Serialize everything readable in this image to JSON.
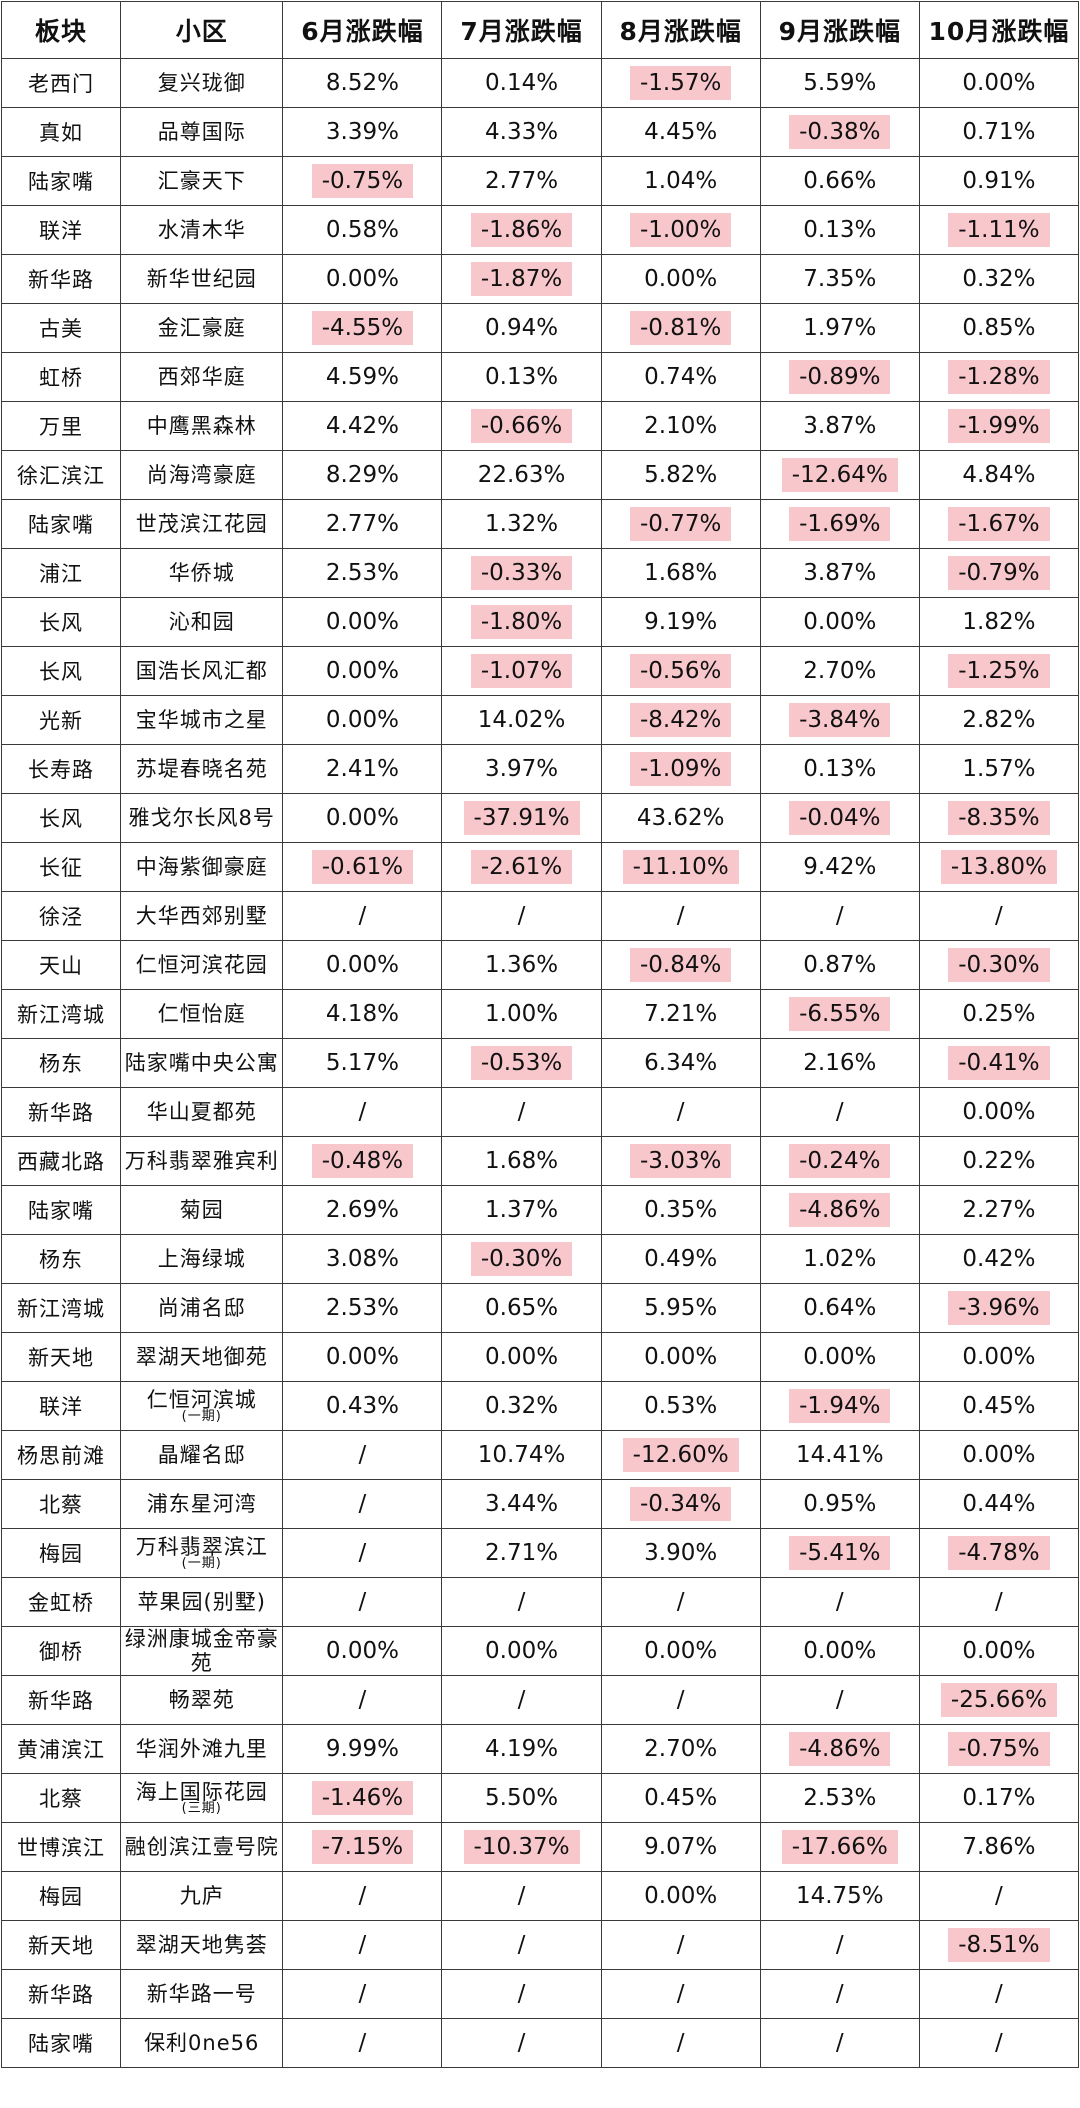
{
  "headers": [
    "板块",
    "小区",
    "6月涨跌幅",
    "7月涨跌幅",
    "8月涨跌幅",
    "9月涨跌幅",
    "10月涨跌幅"
  ],
  "highlight_color": "#f8c7cb",
  "rows": [
    {
      "board": "老西门",
      "community": "复兴珑御",
      "sub": "",
      "values": [
        "8.52%",
        "0.14%",
        "-1.57%",
        "5.59%",
        "0.00%"
      ]
    },
    {
      "board": "真如",
      "community": "品尊国际",
      "sub": "",
      "values": [
        "3.39%",
        "4.33%",
        "4.45%",
        "-0.38%",
        "0.71%"
      ]
    },
    {
      "board": "陆家嘴",
      "community": "汇豪天下",
      "sub": "",
      "values": [
        "-0.75%",
        "2.77%",
        "1.04%",
        "0.66%",
        "0.91%"
      ]
    },
    {
      "board": "联洋",
      "community": "水清木华",
      "sub": "",
      "values": [
        "0.58%",
        "-1.86%",
        "-1.00%",
        "0.13%",
        "-1.11%"
      ]
    },
    {
      "board": "新华路",
      "community": "新华世纪园",
      "sub": "",
      "values": [
        "0.00%",
        "-1.87%",
        "0.00%",
        "7.35%",
        "0.32%"
      ]
    },
    {
      "board": "古美",
      "community": "金汇豪庭",
      "sub": "",
      "values": [
        "-4.55%",
        "0.94%",
        "-0.81%",
        "1.97%",
        "0.85%"
      ]
    },
    {
      "board": "虹桥",
      "community": "西郊华庭",
      "sub": "",
      "values": [
        "4.59%",
        "0.13%",
        "0.74%",
        "-0.89%",
        "-1.28%"
      ]
    },
    {
      "board": "万里",
      "community": "中鹰黑森林",
      "sub": "",
      "values": [
        "4.42%",
        "-0.66%",
        "2.10%",
        "3.87%",
        "-1.99%"
      ]
    },
    {
      "board": "徐汇滨江",
      "community": "尚海湾豪庭",
      "sub": "",
      "values": [
        "8.29%",
        "22.63%",
        "5.82%",
        "-12.64%",
        "4.84%"
      ]
    },
    {
      "board": "陆家嘴",
      "community": "世茂滨江花园",
      "sub": "",
      "values": [
        "2.77%",
        "1.32%",
        "-0.77%",
        "-1.69%",
        "-1.67%"
      ]
    },
    {
      "board": "浦江",
      "community": "华侨城",
      "sub": "",
      "values": [
        "2.53%",
        "-0.33%",
        "1.68%",
        "3.87%",
        "-0.79%"
      ]
    },
    {
      "board": "长风",
      "community": "沁和园",
      "sub": "",
      "values": [
        "0.00%",
        "-1.80%",
        "9.19%",
        "0.00%",
        "1.82%"
      ]
    },
    {
      "board": "长风",
      "community": "国浩长风汇都",
      "sub": "",
      "values": [
        "0.00%",
        "-1.07%",
        "-0.56%",
        "2.70%",
        "-1.25%"
      ]
    },
    {
      "board": "光新",
      "community": "宝华城市之星",
      "sub": "",
      "values": [
        "0.00%",
        "14.02%",
        "-8.42%",
        "-3.84%",
        "2.82%"
      ]
    },
    {
      "board": "长寿路",
      "community": "苏堤春晓名苑",
      "sub": "",
      "values": [
        "2.41%",
        "3.97%",
        "-1.09%",
        "0.13%",
        "1.57%"
      ]
    },
    {
      "board": "长风",
      "community": "雅戈尔长风8号",
      "sub": "",
      "values": [
        "0.00%",
        "-37.91%",
        "43.62%",
        "-0.04%",
        "-8.35%"
      ]
    },
    {
      "board": "长征",
      "community": "中海紫御豪庭",
      "sub": "",
      "values": [
        "-0.61%",
        "-2.61%",
        "-11.10%",
        "9.42%",
        "-13.80%"
      ]
    },
    {
      "board": "徐泾",
      "community": "大华西郊别墅",
      "sub": "",
      "values": [
        "/",
        "/",
        "/",
        "/",
        "/"
      ]
    },
    {
      "board": "天山",
      "community": "仁恒河滨花园",
      "sub": "",
      "values": [
        "0.00%",
        "1.36%",
        "-0.84%",
        "0.87%",
        "-0.30%"
      ]
    },
    {
      "board": "新江湾城",
      "community": "仁恒怡庭",
      "sub": "",
      "values": [
        "4.18%",
        "1.00%",
        "7.21%",
        "-6.55%",
        "0.25%"
      ]
    },
    {
      "board": "杨东",
      "community": "陆家嘴中央公寓",
      "sub": "",
      "values": [
        "5.17%",
        "-0.53%",
        "6.34%",
        "2.16%",
        "-0.41%"
      ]
    },
    {
      "board": "新华路",
      "community": "华山夏都苑",
      "sub": "",
      "values": [
        "/",
        "/",
        "/",
        "/",
        "0.00%"
      ]
    },
    {
      "board": "西藏北路",
      "community": "万科翡翠雅宾利",
      "sub": "",
      "values": [
        "-0.48%",
        "1.68%",
        "-3.03%",
        "-0.24%",
        "0.22%"
      ]
    },
    {
      "board": "陆家嘴",
      "community": "菊园",
      "sub": "",
      "values": [
        "2.69%",
        "1.37%",
        "0.35%",
        "-4.86%",
        "2.27%"
      ]
    },
    {
      "board": "杨东",
      "community": "上海绿城",
      "sub": "",
      "values": [
        "3.08%",
        "-0.30%",
        "0.49%",
        "1.02%",
        "0.42%"
      ]
    },
    {
      "board": "新江湾城",
      "community": "尚浦名邸",
      "sub": "",
      "values": [
        "2.53%",
        "0.65%",
        "5.95%",
        "0.64%",
        "-3.96%"
      ]
    },
    {
      "board": "新天地",
      "community": "翠湖天地御苑",
      "sub": "",
      "values": [
        "0.00%",
        "0.00%",
        "0.00%",
        "0.00%",
        "0.00%"
      ]
    },
    {
      "board": "联洋",
      "community": "仁恒河滨城",
      "sub": "(一期)",
      "values": [
        "0.43%",
        "0.32%",
        "0.53%",
        "-1.94%",
        "0.45%"
      ]
    },
    {
      "board": "杨思前滩",
      "community": "晶耀名邸",
      "sub": "",
      "values": [
        "/",
        "10.74%",
        "-12.60%",
        "14.41%",
        "0.00%"
      ]
    },
    {
      "board": "北蔡",
      "community": "浦东星河湾",
      "sub": "",
      "values": [
        "/",
        "3.44%",
        "-0.34%",
        "0.95%",
        "0.44%"
      ]
    },
    {
      "board": "梅园",
      "community": "万科翡翠滨江",
      "sub": "(一期)",
      "values": [
        "/",
        "2.71%",
        "3.90%",
        "-5.41%",
        "-4.78%"
      ]
    },
    {
      "board": "金虹桥",
      "community": "苹果园(别墅)",
      "sub": "",
      "values": [
        "/",
        "/",
        "/",
        "/",
        "/"
      ]
    },
    {
      "board": "御桥",
      "community": "绿洲康城金帝豪苑",
      "sub": "",
      "values": [
        "0.00%",
        "0.00%",
        "0.00%",
        "0.00%",
        "0.00%"
      ]
    },
    {
      "board": "新华路",
      "community": "畅翠苑",
      "sub": "",
      "values": [
        "/",
        "/",
        "/",
        "/",
        "-25.66%"
      ]
    },
    {
      "board": "黄浦滨江",
      "community": "华润外滩九里",
      "sub": "",
      "values": [
        "9.99%",
        "4.19%",
        "2.70%",
        "-4.86%",
        "-0.75%"
      ]
    },
    {
      "board": "北蔡",
      "community": "海上国际花园",
      "sub": "(三期)",
      "values": [
        "-1.46%",
        "5.50%",
        "0.45%",
        "2.53%",
        "0.17%"
      ]
    },
    {
      "board": "世博滨江",
      "community": "融创滨江壹号院",
      "sub": "",
      "values": [
        "-7.15%",
        "-10.37%",
        "9.07%",
        "-17.66%",
        "7.86%"
      ]
    },
    {
      "board": "梅园",
      "community": "九庐",
      "sub": "",
      "values": [
        "/",
        "/",
        "0.00%",
        "14.75%",
        "/"
      ]
    },
    {
      "board": "新天地",
      "community": "翠湖天地隽荟",
      "sub": "",
      "values": [
        "/",
        "/",
        "/",
        "/",
        "-8.51%"
      ]
    },
    {
      "board": "新华路",
      "community": "新华路一号",
      "sub": "",
      "values": [
        "/",
        "/",
        "/",
        "/",
        "/"
      ]
    },
    {
      "board": "陆家嘴",
      "community": "保利0ne56",
      "sub": "",
      "values": [
        "/",
        "/",
        "/",
        "/",
        "/"
      ]
    }
  ]
}
